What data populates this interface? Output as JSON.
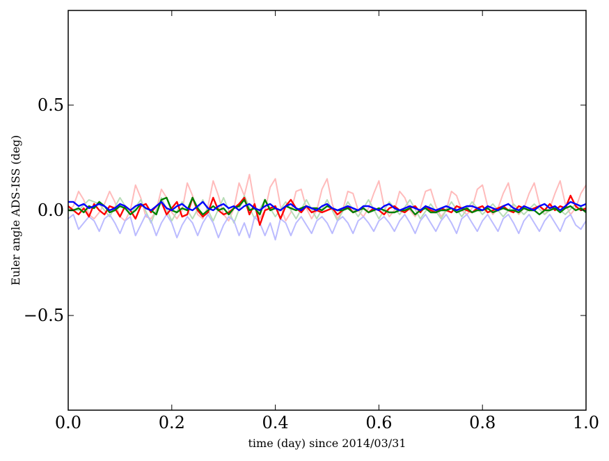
{
  "chart_data": {
    "type": "line",
    "title": "",
    "xlabel": "time (day) since 2014/03/31",
    "ylabel": "Euler angle ADS-ISS (deg)",
    "xlim": [
      0.0,
      1.0
    ],
    "ylim": [
      -0.95,
      0.95
    ],
    "xticks": [
      0.0,
      0.2,
      0.4,
      0.6,
      0.8,
      1.0
    ],
    "xtick_labels": [
      "0.0",
      "0.2",
      "0.4",
      "0.6",
      "0.8",
      "1.0"
    ],
    "yticks": [
      -0.5,
      0.0,
      0.5
    ],
    "ytick_labels": [
      "−0.5",
      "0.0",
      "0.5"
    ],
    "grid": false,
    "legend": "none",
    "series": [
      {
        "color": "#ffbbbb",
        "opacity": 1.0,
        "width": 2,
        "note_shape": "periodic peaks ~0.1 every ~0.065 day",
        "x": [
          0.0,
          0.01,
          0.02,
          0.03,
          0.04,
          0.05,
          0.06,
          0.07,
          0.08,
          0.09,
          0.1,
          0.11,
          0.12,
          0.13,
          0.14,
          0.15,
          0.16,
          0.17,
          0.18,
          0.19,
          0.2,
          0.21,
          0.22,
          0.23,
          0.24,
          0.25,
          0.26,
          0.27,
          0.28,
          0.29,
          0.3,
          0.31,
          0.32,
          0.33,
          0.34,
          0.35,
          0.36,
          0.37,
          0.38,
          0.39,
          0.4,
          0.41,
          0.42,
          0.43,
          0.44,
          0.45,
          0.46,
          0.47,
          0.48,
          0.49,
          0.5,
          0.51,
          0.52,
          0.53,
          0.54,
          0.55,
          0.56,
          0.57,
          0.58,
          0.59,
          0.6,
          0.61,
          0.62,
          0.63,
          0.64,
          0.65,
          0.66,
          0.67,
          0.68,
          0.69,
          0.7,
          0.71,
          0.72,
          0.73,
          0.74,
          0.75,
          0.76,
          0.77,
          0.78,
          0.79,
          0.8,
          0.81,
          0.82,
          0.83,
          0.84,
          0.85,
          0.86,
          0.87,
          0.88,
          0.89,
          0.9,
          0.91,
          0.92,
          0.93,
          0.94,
          0.95,
          0.96,
          0.97,
          0.98,
          0.99,
          1.0
        ],
        "y": [
          0.0,
          0.02,
          0.09,
          0.05,
          -0.02,
          -0.04,
          -0.01,
          0.03,
          0.09,
          0.04,
          -0.03,
          -0.05,
          0.0,
          0.12,
          0.06,
          -0.03,
          -0.04,
          0.0,
          0.1,
          0.06,
          -0.01,
          -0.04,
          0.0,
          0.13,
          0.07,
          -0.02,
          -0.04,
          0.02,
          0.14,
          0.07,
          -0.02,
          -0.05,
          0.01,
          0.13,
          0.07,
          0.17,
          0.03,
          -0.04,
          0.0,
          0.11,
          0.15,
          0.02,
          -0.05,
          -0.01,
          0.09,
          0.1,
          0.01,
          -0.04,
          0.0,
          0.1,
          0.15,
          0.03,
          -0.04,
          0.0,
          0.09,
          0.08,
          0.0,
          -0.03,
          0.01,
          0.08,
          0.14,
          0.02,
          -0.03,
          0.0,
          0.09,
          0.06,
          0.0,
          -0.03,
          0.01,
          0.09,
          0.1,
          0.02,
          -0.03,
          0.0,
          0.09,
          0.07,
          0.0,
          -0.02,
          0.01,
          0.1,
          0.12,
          0.02,
          -0.02,
          0.01,
          0.08,
          0.13,
          0.02,
          -0.02,
          0.01,
          0.08,
          0.13,
          0.03,
          -0.02,
          0.01,
          0.08,
          0.14,
          0.03,
          -0.02,
          0.01,
          0.08,
          0.12
        ]
      },
      {
        "color": "#b8ddb8",
        "opacity": 1.0,
        "width": 2,
        "x": [
          0.0,
          0.02,
          0.04,
          0.06,
          0.08,
          0.1,
          0.12,
          0.14,
          0.16,
          0.18,
          0.2,
          0.22,
          0.24,
          0.26,
          0.28,
          0.3,
          0.32,
          0.34,
          0.36,
          0.38,
          0.4,
          0.42,
          0.44,
          0.46,
          0.48,
          0.5,
          0.52,
          0.54,
          0.56,
          0.58,
          0.6,
          0.62,
          0.64,
          0.66,
          0.68,
          0.7,
          0.72,
          0.74,
          0.76,
          0.78,
          0.8,
          0.82,
          0.84,
          0.86,
          0.88,
          0.9,
          0.92,
          0.94,
          0.96,
          0.98,
          1.0
        ],
        "y": [
          0.01,
          0.0,
          0.05,
          0.03,
          -0.03,
          0.06,
          -0.02,
          0.05,
          -0.06,
          0.06,
          -0.05,
          0.04,
          -0.04,
          0.05,
          -0.05,
          0.06,
          -0.06,
          0.07,
          -0.04,
          0.05,
          -0.03,
          0.04,
          -0.04,
          0.05,
          -0.04,
          0.05,
          -0.05,
          0.04,
          -0.03,
          0.05,
          -0.04,
          0.04,
          -0.02,
          0.05,
          -0.04,
          0.03,
          -0.04,
          0.04,
          -0.03,
          0.04,
          -0.02,
          0.03,
          -0.03,
          0.03,
          -0.02,
          0.03,
          -0.02,
          0.02,
          -0.02,
          0.03,
          0.0
        ]
      },
      {
        "color": "#bbbbff",
        "opacity": 1.0,
        "width": 2,
        "x": [
          0.0,
          0.01,
          0.02,
          0.03,
          0.04,
          0.05,
          0.06,
          0.07,
          0.08,
          0.09,
          0.1,
          0.11,
          0.12,
          0.13,
          0.14,
          0.15,
          0.16,
          0.17,
          0.18,
          0.19,
          0.2,
          0.21,
          0.22,
          0.23,
          0.24,
          0.25,
          0.26,
          0.27,
          0.28,
          0.29,
          0.3,
          0.31,
          0.32,
          0.33,
          0.34,
          0.35,
          0.36,
          0.37,
          0.38,
          0.39,
          0.4,
          0.41,
          0.42,
          0.43,
          0.44,
          0.45,
          0.46,
          0.47,
          0.48,
          0.49,
          0.5,
          0.51,
          0.52,
          0.53,
          0.54,
          0.55,
          0.56,
          0.57,
          0.58,
          0.59,
          0.6,
          0.61,
          0.62,
          0.63,
          0.64,
          0.65,
          0.66,
          0.67,
          0.68,
          0.69,
          0.7,
          0.71,
          0.72,
          0.73,
          0.74,
          0.75,
          0.76,
          0.77,
          0.78,
          0.79,
          0.8,
          0.81,
          0.82,
          0.83,
          0.84,
          0.85,
          0.86,
          0.87,
          0.88,
          0.89,
          0.9,
          0.91,
          0.92,
          0.93,
          0.94,
          0.95,
          0.96,
          0.97,
          0.98,
          0.99,
          1.0
        ],
        "y": [
          -0.04,
          -0.02,
          -0.09,
          -0.06,
          -0.03,
          -0.05,
          -0.1,
          -0.04,
          -0.02,
          -0.06,
          -0.11,
          -0.05,
          -0.03,
          -0.12,
          -0.07,
          -0.02,
          -0.05,
          -0.12,
          -0.06,
          -0.02,
          -0.06,
          -0.13,
          -0.07,
          -0.03,
          -0.06,
          -0.12,
          -0.06,
          -0.02,
          -0.06,
          -0.13,
          -0.07,
          -0.03,
          -0.05,
          -0.12,
          -0.06,
          -0.13,
          -0.03,
          -0.06,
          -0.12,
          -0.06,
          -0.14,
          -0.04,
          -0.06,
          -0.12,
          -0.06,
          -0.03,
          -0.07,
          -0.11,
          -0.05,
          -0.03,
          -0.06,
          -0.11,
          -0.05,
          -0.03,
          -0.06,
          -0.11,
          -0.05,
          -0.03,
          -0.06,
          -0.1,
          -0.05,
          -0.03,
          -0.06,
          -0.1,
          -0.05,
          -0.02,
          -0.06,
          -0.11,
          -0.05,
          -0.02,
          -0.06,
          -0.1,
          -0.05,
          -0.02,
          -0.06,
          -0.11,
          -0.04,
          -0.02,
          -0.06,
          -0.1,
          -0.05,
          -0.02,
          -0.06,
          -0.1,
          -0.04,
          -0.02,
          -0.06,
          -0.11,
          -0.05,
          -0.02,
          -0.06,
          -0.1,
          -0.05,
          -0.02,
          -0.06,
          -0.1,
          -0.04,
          -0.02,
          -0.07,
          -0.09,
          -0.05
        ]
      },
      {
        "color": "#ff0000",
        "opacity": 1.0,
        "width": 2.4,
        "x": [
          0.0,
          0.01,
          0.02,
          0.03,
          0.04,
          0.05,
          0.06,
          0.07,
          0.08,
          0.09,
          0.1,
          0.11,
          0.12,
          0.13,
          0.14,
          0.15,
          0.16,
          0.17,
          0.18,
          0.19,
          0.2,
          0.21,
          0.22,
          0.23,
          0.24,
          0.25,
          0.26,
          0.27,
          0.28,
          0.29,
          0.3,
          0.31,
          0.32,
          0.33,
          0.34,
          0.35,
          0.36,
          0.37,
          0.38,
          0.39,
          0.4,
          0.41,
          0.42,
          0.43,
          0.44,
          0.45,
          0.46,
          0.47,
          0.48,
          0.49,
          0.5,
          0.51,
          0.52,
          0.53,
          0.54,
          0.55,
          0.56,
          0.57,
          0.58,
          0.59,
          0.6,
          0.61,
          0.62,
          0.63,
          0.64,
          0.65,
          0.66,
          0.67,
          0.68,
          0.69,
          0.7,
          0.71,
          0.72,
          0.73,
          0.74,
          0.75,
          0.76,
          0.77,
          0.78,
          0.79,
          0.8,
          0.81,
          0.82,
          0.83,
          0.84,
          0.85,
          0.86,
          0.87,
          0.88,
          0.89,
          0.9,
          0.91,
          0.92,
          0.93,
          0.94,
          0.95,
          0.96,
          0.97,
          0.98,
          0.99,
          1.0
        ],
        "y": [
          0.02,
          0.0,
          -0.02,
          0.01,
          -0.03,
          0.03,
          0.0,
          -0.02,
          0.02,
          0.01,
          -0.03,
          0.02,
          0.0,
          -0.04,
          0.02,
          0.03,
          -0.01,
          0.02,
          0.04,
          -0.02,
          0.01,
          0.04,
          -0.03,
          -0.02,
          0.06,
          0.0,
          -0.03,
          -0.01,
          0.06,
          0.0,
          -0.02,
          -0.01,
          0.01,
          0.03,
          0.06,
          -0.02,
          0.03,
          -0.07,
          0.0,
          0.01,
          0.02,
          -0.04,
          0.02,
          0.05,
          0.01,
          -0.01,
          0.02,
          -0.01,
          0.0,
          -0.01,
          0.0,
          0.01,
          -0.02,
          0.0,
          0.02,
          -0.01,
          0.0,
          0.01,
          -0.01,
          0.01,
          0.0,
          -0.02,
          0.01,
          0.02,
          0.0,
          -0.01,
          0.01,
          0.02,
          -0.01,
          0.02,
          0.0,
          -0.01,
          0.01,
          0.0,
          -0.01,
          0.02,
          0.01,
          0.0,
          -0.01,
          0.01,
          0.02,
          -0.01,
          0.0,
          0.01,
          0.02,
          0.0,
          -0.01,
          0.02,
          0.01,
          0.0,
          0.01,
          0.02,
          0.0,
          0.03,
          0.0,
          0.02,
          0.01,
          0.07,
          0.02,
          0.0,
          0.01
        ]
      },
      {
        "color": "#008000",
        "opacity": 1.0,
        "width": 2.4,
        "x": [
          0.0,
          0.01,
          0.02,
          0.03,
          0.04,
          0.05,
          0.06,
          0.07,
          0.08,
          0.09,
          0.1,
          0.11,
          0.12,
          0.13,
          0.14,
          0.15,
          0.16,
          0.17,
          0.18,
          0.19,
          0.2,
          0.21,
          0.22,
          0.23,
          0.24,
          0.25,
          0.26,
          0.27,
          0.28,
          0.29,
          0.3,
          0.31,
          0.32,
          0.33,
          0.34,
          0.35,
          0.36,
          0.37,
          0.38,
          0.39,
          0.4,
          0.41,
          0.42,
          0.43,
          0.44,
          0.45,
          0.46,
          0.47,
          0.48,
          0.49,
          0.5,
          0.51,
          0.52,
          0.53,
          0.54,
          0.55,
          0.56,
          0.57,
          0.58,
          0.59,
          0.6,
          0.61,
          0.62,
          0.63,
          0.64,
          0.65,
          0.66,
          0.67,
          0.68,
          0.69,
          0.7,
          0.71,
          0.72,
          0.73,
          0.74,
          0.75,
          0.76,
          0.77,
          0.78,
          0.79,
          0.8,
          0.81,
          0.82,
          0.83,
          0.84,
          0.85,
          0.86,
          0.87,
          0.88,
          0.89,
          0.9,
          0.91,
          0.92,
          0.93,
          0.94,
          0.95,
          0.96,
          0.97,
          0.98,
          0.99,
          1.0
        ],
        "y": [
          0.0,
          0.0,
          0.01,
          -0.01,
          0.02,
          0.01,
          0.04,
          0.02,
          -0.01,
          0.0,
          0.02,
          0.01,
          -0.02,
          0.0,
          0.03,
          0.01,
          0.0,
          -0.02,
          0.05,
          0.06,
          0.0,
          -0.01,
          0.01,
          0.0,
          0.06,
          0.01,
          -0.02,
          0.0,
          0.02,
          0.0,
          0.01,
          -0.02,
          0.01,
          0.02,
          0.05,
          0.0,
          0.01,
          -0.02,
          0.05,
          0.0,
          0.01,
          0.0,
          0.02,
          0.01,
          0.0,
          0.01,
          0.02,
          0.01,
          0.01,
          0.0,
          0.02,
          0.01,
          0.0,
          0.0,
          0.01,
          -0.01,
          0.0,
          0.01,
          -0.01,
          0.0,
          0.01,
          0.0,
          -0.01,
          -0.01,
          0.0,
          0.0,
          0.01,
          -0.02,
          0.0,
          0.01,
          -0.01,
          -0.01,
          0.0,
          0.0,
          0.01,
          -0.01,
          0.0,
          0.01,
          -0.01,
          0.0,
          0.0,
          0.01,
          -0.01,
          0.0,
          0.01,
          0.0,
          0.0,
          -0.01,
          0.01,
          0.0,
          0.0,
          -0.02,
          0.0,
          0.0,
          0.01,
          -0.01,
          0.01,
          0.02,
          0.0,
          0.01,
          -0.01
        ]
      },
      {
        "color": "#0000ff",
        "opacity": 1.0,
        "width": 2.4,
        "x": [
          0.0,
          0.01,
          0.02,
          0.03,
          0.04,
          0.05,
          0.06,
          0.07,
          0.08,
          0.09,
          0.1,
          0.11,
          0.12,
          0.13,
          0.14,
          0.15,
          0.16,
          0.17,
          0.18,
          0.19,
          0.2,
          0.21,
          0.22,
          0.23,
          0.24,
          0.25,
          0.26,
          0.27,
          0.28,
          0.29,
          0.3,
          0.31,
          0.32,
          0.33,
          0.34,
          0.35,
          0.36,
          0.37,
          0.38,
          0.39,
          0.4,
          0.41,
          0.42,
          0.43,
          0.44,
          0.45,
          0.46,
          0.47,
          0.48,
          0.49,
          0.5,
          0.51,
          0.52,
          0.53,
          0.54,
          0.55,
          0.56,
          0.57,
          0.58,
          0.59,
          0.6,
          0.61,
          0.62,
          0.63,
          0.64,
          0.65,
          0.66,
          0.67,
          0.68,
          0.69,
          0.7,
          0.71,
          0.72,
          0.73,
          0.74,
          0.75,
          0.76,
          0.77,
          0.78,
          0.79,
          0.8,
          0.81,
          0.82,
          0.83,
          0.84,
          0.85,
          0.86,
          0.87,
          0.88,
          0.89,
          0.9,
          0.91,
          0.92,
          0.93,
          0.94,
          0.95,
          0.96,
          0.97,
          0.98,
          0.99,
          1.0
        ],
        "y": [
          0.04,
          0.04,
          0.02,
          0.03,
          0.01,
          0.02,
          0.03,
          0.02,
          0.0,
          0.01,
          0.03,
          0.02,
          0.0,
          0.02,
          0.03,
          0.01,
          0.0,
          0.02,
          0.04,
          0.01,
          0.0,
          0.02,
          0.03,
          0.01,
          0.0,
          0.02,
          0.04,
          0.01,
          0.0,
          0.02,
          0.03,
          0.01,
          0.02,
          0.0,
          0.02,
          0.03,
          0.01,
          0.0,
          0.02,
          0.03,
          0.01,
          0.0,
          0.02,
          0.03,
          0.01,
          0.0,
          0.02,
          0.01,
          0.0,
          0.02,
          0.03,
          0.01,
          0.0,
          0.01,
          0.02,
          0.01,
          0.0,
          0.02,
          0.02,
          0.01,
          0.0,
          0.02,
          0.03,
          0.01,
          0.0,
          0.01,
          0.02,
          0.01,
          0.0,
          0.02,
          0.01,
          0.0,
          0.01,
          0.02,
          0.01,
          0.0,
          0.01,
          0.02,
          0.02,
          0.01,
          0.0,
          0.02,
          0.01,
          0.0,
          0.02,
          0.03,
          0.01,
          0.0,
          0.02,
          0.01,
          0.0,
          0.02,
          0.03,
          0.01,
          0.02,
          0.0,
          0.02,
          0.04,
          0.03,
          0.02,
          0.03
        ]
      }
    ]
  }
}
